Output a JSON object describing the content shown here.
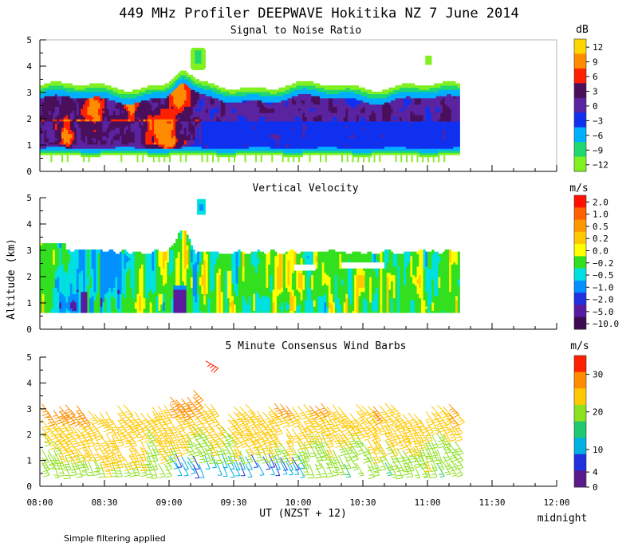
{
  "title": "449 MHz Profiler DEEPWAVE Hokitika NZ  7 June 2014",
  "footnote": "Simple filtering applied",
  "x_axis": {
    "label": "UT  (NZST + 12)",
    "end_note": "midnight",
    "range_minutes": [
      0,
      240
    ],
    "ticks": [
      {
        "label": "08:00",
        "min": 0
      },
      {
        "label": "08:30",
        "min": 30
      },
      {
        "label": "09:00",
        "min": 60
      },
      {
        "label": "09:30",
        "min": 90
      },
      {
        "label": "10:00",
        "min": 120
      },
      {
        "label": "10:30",
        "min": 150
      },
      {
        "label": "11:00",
        "min": 180
      },
      {
        "label": "11:30",
        "min": 210
      },
      {
        "label": "12:00",
        "min": 240
      }
    ]
  },
  "y_axis": {
    "label": "Altitude (km)",
    "range": [
      0,
      5
    ],
    "ticks": [
      "0",
      "1",
      "2",
      "3",
      "4",
      "5"
    ]
  },
  "chart_data": [
    {
      "type": "heatmap",
      "title": "Signal to Noise Ratio",
      "unit": "dB",
      "data_extent_minutes": [
        0,
        195
      ],
      "colorbar": {
        "labels": [
          "12",
          "9",
          "6",
          "3",
          "0",
          "−3",
          "−6",
          "−9",
          "−12"
        ],
        "colors": [
          "#ffd700",
          "#ff8c00",
          "#ff2000",
          "#4a0f5a",
          "#5a23a0",
          "#1030f0",
          "#00b0ff",
          "#20d870",
          "#80f020"
        ]
      }
    },
    {
      "type": "heatmap",
      "title": "Vertical Velocity",
      "unit": "m/s",
      "data_extent_minutes": [
        0,
        195
      ],
      "colorbar": {
        "labels": [
          "2.0",
          "1.0",
          "0.5",
          "0.2",
          "0.0",
          "−0.2",
          "−0.5",
          "−1.0",
          "−2.0",
          "−5.0",
          "−10.0"
        ],
        "colors": [
          "#ff1000",
          "#ff6000",
          "#ff9800",
          "#ffc800",
          "#ffff00",
          "#33e020",
          "#00e0e0",
          "#0090ff",
          "#2030e0",
          "#5a1aa0",
          "#3c0a50"
        ]
      }
    },
    {
      "type": "wind_barbs",
      "title": "5 Minute Consensus Wind Barbs",
      "unit": "m/s",
      "data_extent_minutes": [
        0,
        195
      ],
      "colorbar": {
        "labels": [
          "30",
          "20",
          "10",
          "4",
          "0"
        ],
        "colors": [
          "#ff2000",
          "#ff8c00",
          "#ffc800",
          "#8ce020",
          "#20c870",
          "#00b0e0",
          "#2030e0",
          "#5a1a8c"
        ]
      }
    }
  ]
}
